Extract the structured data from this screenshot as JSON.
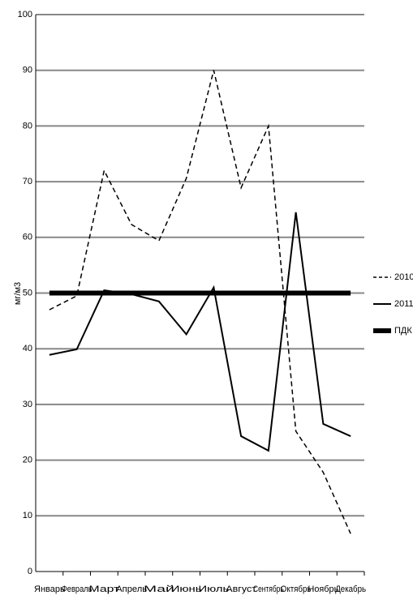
{
  "chart_data": {
    "type": "line",
    "y_label": "мг/м3",
    "categories": [
      "Январь",
      "Февраль",
      "Март",
      "Апрель",
      "Май",
      "Июнь",
      "Июль",
      "Август",
      "Сентябрь",
      "Октябрь",
      "Ноябрь",
      "Декабрь"
    ],
    "series": [
      {
        "name": "2010",
        "color": "#000000",
        "dashed": true,
        "width": 1.5,
        "values": [
          47,
          49.5,
          72,
          62.3,
          59.4,
          70.6,
          90,
          68.9,
          80,
          25.2,
          17.8,
          6.8
        ]
      },
      {
        "name": "2011",
        "color": "#000000",
        "dashed": false,
        "width": 2,
        "values": [
          38.9,
          39.9,
          50.5,
          49.8,
          48.5,
          42.6,
          51,
          24.3,
          21.7,
          64.5,
          26.5,
          24.3
        ]
      },
      {
        "name": "ПДК",
        "color": "#000000",
        "dashed": false,
        "width": 6,
        "values": [
          50,
          50,
          50,
          50,
          50,
          50,
          50,
          50,
          50,
          50,
          50,
          50
        ]
      }
    ],
    "ylim": [
      0,
      100
    ],
    "yticks": [
      0,
      10,
      20,
      30,
      40,
      50,
      60,
      70,
      80,
      90,
      100
    ],
    "grid": true,
    "legend": "right"
  }
}
